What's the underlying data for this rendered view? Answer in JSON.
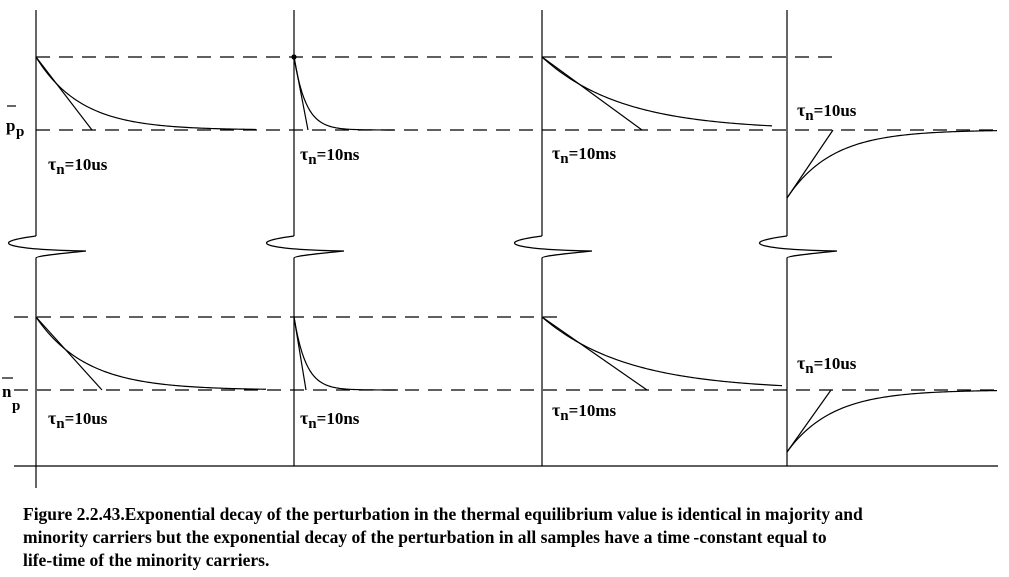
{
  "labels": {
    "upper_row": "p",
    "upper_row_sub": "p",
    "lower_row": "n",
    "lower_row_sub": "p"
  },
  "panels": [
    {
      "row": "upper",
      "column": 1,
      "tau_symbol": "τ",
      "tau_sub": "n",
      "tau_value": "=10us",
      "response": "decay"
    },
    {
      "row": "upper",
      "column": 2,
      "tau_symbol": "τ",
      "tau_sub": "n",
      "tau_value": "=10ns",
      "response": "decay"
    },
    {
      "row": "upper",
      "column": 3,
      "tau_symbol": "τ",
      "tau_sub": "n",
      "tau_value": "=10ms",
      "response": "decay"
    },
    {
      "row": "upper",
      "column": 4,
      "tau_symbol": "τ",
      "tau_sub": "n",
      "tau_value": "=10us",
      "response": "recovery"
    },
    {
      "row": "lower",
      "column": 1,
      "tau_symbol": "τ",
      "tau_sub": "n",
      "tau_value": "=10us",
      "response": "decay"
    },
    {
      "row": "lower",
      "column": 2,
      "tau_symbol": "τ",
      "tau_sub": "n",
      "tau_value": "=10ns",
      "response": "decay"
    },
    {
      "row": "lower",
      "column": 3,
      "tau_symbol": "τ",
      "tau_sub": "n",
      "tau_value": "=10ms",
      "response": "decay"
    },
    {
      "row": "lower",
      "column": 4,
      "tau_symbol": "τ",
      "tau_sub": "n",
      "tau_value": "=10us",
      "response": "recovery"
    }
  ],
  "caption": {
    "line1": "Figure 2.2.43.Exponential decay of the perturbation in the thermal equilibrium value is identical in majority and",
    "line2": "minority carriers but the exponential decay of the perturbation in all samples have a time -constant equal to",
    "line3": "life-time   of the minority carriers."
  },
  "colors": {
    "line": "#000000",
    "background": "#ffffff"
  }
}
